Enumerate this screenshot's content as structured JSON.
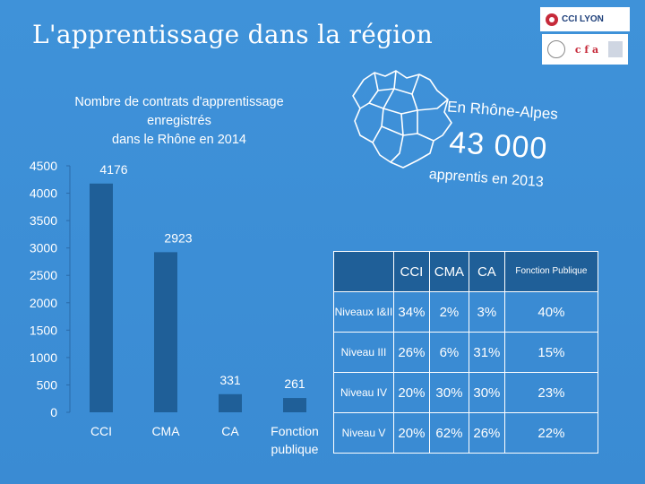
{
  "slide_title": "L'apprentissage dans la région",
  "logo": {
    "name": "CCI LYON"
  },
  "highlight": {
    "line1": "En Rhône-Alpes",
    "value": "43 000",
    "line3": "apprentis en 2013"
  },
  "colors": {
    "background": "#3a8bd3",
    "bar": "#1f5f98",
    "header": "#1f5f98",
    "text": "#ffffff"
  },
  "chart_data": {
    "type": "bar",
    "title": "Nombre de contrats d'apprentissage enregistrés dans le Rhône en 2014",
    "title_lines": [
      "Nombre de contrats d'apprentissage",
      "enregistrés",
      "dans le Rhône en 2014"
    ],
    "categories": [
      "CCI",
      "CMA",
      "CA",
      "Fonction publique"
    ],
    "category_lines": [
      [
        "CCI"
      ],
      [
        "CMA"
      ],
      [
        "CA"
      ],
      [
        "Fonction",
        "publique"
      ]
    ],
    "values": [
      4176,
      2923,
      331,
      261
    ],
    "data_labels": [
      "4176",
      "2923",
      "331",
      "261"
    ],
    "ylim": [
      0,
      4500
    ],
    "yticks": [
      0,
      500,
      1000,
      1500,
      2000,
      2500,
      3000,
      3500,
      4000,
      4500
    ],
    "grid": false,
    "legend": "none"
  },
  "table": {
    "columns": [
      "CCI",
      "CMA",
      "CA",
      "Fonction Publique"
    ],
    "rows": [
      {
        "label": "Niveaux I&II",
        "values": [
          "34%",
          "2%",
          "3%",
          "40%"
        ]
      },
      {
        "label": "Niveau III",
        "values": [
          "26%",
          "6%",
          "31%",
          "15%"
        ]
      },
      {
        "label": "Niveau IV",
        "values": [
          "20%",
          "30%",
          "30%",
          "23%"
        ]
      },
      {
        "label": "Niveau V",
        "values": [
          "20%",
          "62%",
          "26%",
          "22%"
        ]
      }
    ]
  }
}
